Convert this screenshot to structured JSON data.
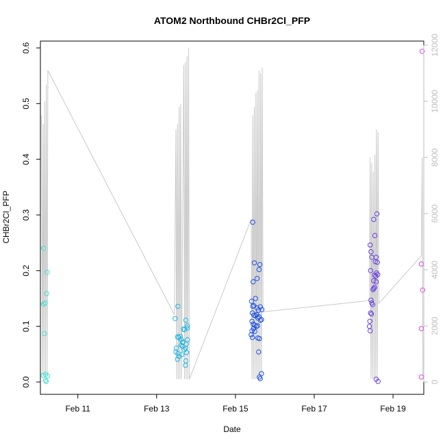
{
  "chart_data": {
    "type": "scatter",
    "title": "ATOM2 Northbound CHBr2Cl_PFP",
    "xlabel": "Date",
    "ylabel": "CHBr2Cl_PFP",
    "x_ticks": [
      {
        "label": "Feb 11",
        "value": 11
      },
      {
        "label": "Feb 13",
        "value": 13
      },
      {
        "label": "Feb 15",
        "value": 15
      },
      {
        "label": "Feb 17",
        "value": 17
      },
      {
        "label": "Feb 19",
        "value": 19
      }
    ],
    "xlim": [
      10.05,
      19.78
    ],
    "y_ticks": [
      {
        "label": "0.0",
        "value": 0.0
      },
      {
        "label": "0.1",
        "value": 0.1
      },
      {
        "label": "0.2",
        "value": 0.2
      },
      {
        "label": "0.3",
        "value": 0.3
      },
      {
        "label": "0.4",
        "value": 0.4
      },
      {
        "label": "0.5",
        "value": 0.5
      },
      {
        "label": "0.6",
        "value": 0.6
      }
    ],
    "ylim": [
      0.0,
      0.6
    ],
    "y2_ticks": [
      {
        "label": "0",
        "value": 0
      },
      {
        "label": "2000",
        "value": 2000
      },
      {
        "label": "4000",
        "value": 4000
      },
      {
        "label": "6000",
        "value": 6000
      },
      {
        "label": "8000",
        "value": 8000
      },
      {
        "label": "10000",
        "value": 10000
      },
      {
        "label": "12000",
        "value": 12000
      }
    ],
    "y2lim": [
      0,
      12000
    ],
    "grid": false,
    "series": [
      {
        "color": "#40e0d0",
        "points": [
          [
            10.13,
            0.24
          ],
          [
            10.13,
            0.14
          ],
          [
            10.17,
            0.142
          ],
          [
            10.22,
            0.197
          ],
          [
            10.21,
            0.159
          ],
          [
            10.15,
            0.087
          ],
          [
            10.12,
            0.012
          ],
          [
            10.18,
            0.014
          ],
          [
            10.23,
            0.011
          ],
          [
            10.18,
            0.003
          ],
          [
            10.2,
            0.001
          ]
        ]
      },
      {
        "color": "#1fb5e0",
        "points": [
          [
            13.47,
            0.114
          ],
          [
            13.54,
            0.136
          ],
          [
            13.53,
            0.081
          ],
          [
            13.56,
            0.08
          ],
          [
            13.6,
            0.082
          ],
          [
            13.62,
            0.076
          ],
          [
            13.66,
            0.072
          ],
          [
            13.68,
            0.095
          ],
          [
            13.71,
            0.094
          ],
          [
            13.74,
            0.111
          ],
          [
            13.78,
            0.097
          ],
          [
            13.78,
            0.101
          ],
          [
            13.78,
            0.076
          ],
          [
            13.5,
            0.061
          ],
          [
            13.49,
            0.054
          ],
          [
            13.54,
            0.051
          ],
          [
            13.57,
            0.046
          ],
          [
            13.53,
            0.041
          ],
          [
            13.62,
            0.066
          ],
          [
            13.66,
            0.064
          ],
          [
            13.7,
            0.058
          ],
          [
            13.73,
            0.061
          ],
          [
            13.76,
            0.053
          ],
          [
            13.74,
            0.038
          ],
          [
            13.73,
            0.03
          ],
          [
            13.66,
            0.071
          ],
          [
            13.75,
            0.068
          ],
          [
            13.64,
            0.049
          ]
        ]
      },
      {
        "color": "#1e50e8",
        "points": [
          [
            15.44,
            0.287
          ],
          [
            15.48,
            0.214
          ],
          [
            15.45,
            0.18
          ],
          [
            15.55,
            0.186
          ],
          [
            15.62,
            0.211
          ],
          [
            15.6,
            0.202
          ],
          [
            15.51,
            0.15
          ],
          [
            15.41,
            0.145
          ],
          [
            15.44,
            0.136
          ],
          [
            15.47,
            0.137
          ],
          [
            15.55,
            0.133
          ],
          [
            15.58,
            0.129
          ],
          [
            15.63,
            0.135
          ],
          [
            15.67,
            0.13
          ],
          [
            15.43,
            0.124
          ],
          [
            15.47,
            0.12
          ],
          [
            15.51,
            0.119
          ],
          [
            15.54,
            0.121
          ],
          [
            15.57,
            0.115
          ],
          [
            15.6,
            0.117
          ],
          [
            15.63,
            0.111
          ],
          [
            15.66,
            0.112
          ],
          [
            15.42,
            0.109
          ],
          [
            15.45,
            0.104
          ],
          [
            15.49,
            0.102
          ],
          [
            15.53,
            0.1
          ],
          [
            15.56,
            0.101
          ],
          [
            15.42,
            0.092
          ],
          [
            15.46,
            0.096
          ],
          [
            15.49,
            0.091
          ],
          [
            15.4,
            0.085
          ],
          [
            15.43,
            0.08
          ],
          [
            15.57,
            0.079
          ],
          [
            15.61,
            0.078
          ],
          [
            15.59,
            0.054
          ],
          [
            15.66,
            0.015
          ],
          [
            15.61,
            0.009
          ],
          [
            15.63,
            0.006
          ]
        ]
      },
      {
        "color": "#6a40e0",
        "points": [
          [
            18.42,
            0.246
          ],
          [
            18.44,
            0.234
          ],
          [
            18.54,
            0.263
          ],
          [
            18.51,
            0.292
          ],
          [
            18.59,
            0.302
          ],
          [
            18.46,
            0.224
          ],
          [
            18.55,
            0.216
          ],
          [
            18.57,
            0.224
          ],
          [
            18.6,
            0.215
          ],
          [
            18.43,
            0.2
          ],
          [
            18.53,
            0.192
          ],
          [
            18.56,
            0.19
          ],
          [
            18.58,
            0.196
          ],
          [
            18.61,
            0.193
          ],
          [
            18.51,
            0.182
          ],
          [
            18.57,
            0.18
          ],
          [
            18.44,
            0.147
          ],
          [
            18.46,
            0.142
          ],
          [
            18.48,
            0.139
          ],
          [
            18.51,
            0.168
          ],
          [
            18.53,
            0.17
          ],
          [
            18.49,
            0.166
          ],
          [
            18.43,
            0.124
          ],
          [
            18.45,
            0.122
          ],
          [
            18.41,
            0.109
          ],
          [
            18.4,
            0.1
          ],
          [
            18.42,
            0.092
          ],
          [
            18.57,
            0.005
          ],
          [
            18.62,
            0.001
          ]
        ]
      },
      {
        "color": "#e040e8",
        "points": [
          [
            19.74,
            0.594
          ],
          [
            19.72,
            0.212
          ],
          [
            19.75,
            0.165
          ],
          [
            19.72,
            0.096
          ],
          [
            19.72,
            0.009
          ]
        ]
      }
    ],
    "secondary_line": {
      "color": "#c8c8c8",
      "axis": "right",
      "points": [
        [
          10.08,
          9500
        ],
        [
          10.1,
          200
        ],
        [
          10.12,
          9200
        ],
        [
          10.14,
          200
        ],
        [
          10.16,
          10000
        ],
        [
          10.18,
          200
        ],
        [
          10.2,
          10600
        ],
        [
          10.22,
          200
        ],
        [
          10.24,
          11100
        ],
        [
          13.45,
          2400
        ],
        [
          13.49,
          9000
        ],
        [
          13.51,
          100
        ],
        [
          13.53,
          9200
        ],
        [
          13.55,
          100
        ],
        [
          13.57,
          9800
        ],
        [
          13.59,
          100
        ],
        [
          13.61,
          9900
        ],
        [
          13.63,
          100
        ],
        [
          13.69,
          11300
        ],
        [
          13.71,
          100
        ],
        [
          13.73,
          11400
        ],
        [
          13.75,
          100
        ],
        [
          13.77,
          11600
        ],
        [
          13.79,
          100
        ],
        [
          13.81,
          11900
        ],
        [
          13.83,
          100
        ],
        [
          15.4,
          5800
        ],
        [
          15.42,
          100
        ],
        [
          15.44,
          9500
        ],
        [
          15.46,
          100
        ],
        [
          15.48,
          9800
        ],
        [
          15.5,
          100
        ],
        [
          15.52,
          10300
        ],
        [
          15.54,
          100
        ],
        [
          15.56,
          10400
        ],
        [
          15.58,
          100
        ],
        [
          15.6,
          11100
        ],
        [
          15.62,
          100
        ],
        [
          15.64,
          11000
        ],
        [
          15.66,
          100
        ],
        [
          15.68,
          11200
        ],
        [
          15.7,
          2500
        ],
        [
          18.4,
          2900
        ],
        [
          18.42,
          8000
        ],
        [
          18.44,
          100
        ],
        [
          18.46,
          7800
        ],
        [
          18.48,
          100
        ],
        [
          18.5,
          7500
        ],
        [
          18.52,
          100
        ],
        [
          18.54,
          8100
        ],
        [
          18.56,
          100
        ],
        [
          18.58,
          9000
        ],
        [
          18.6,
          100
        ],
        [
          18.62,
          8900
        ],
        [
          18.64,
          2800
        ],
        [
          19.72,
          4500
        ],
        [
          19.74,
          8000
        ],
        [
          19.76,
          100
        ]
      ]
    }
  }
}
